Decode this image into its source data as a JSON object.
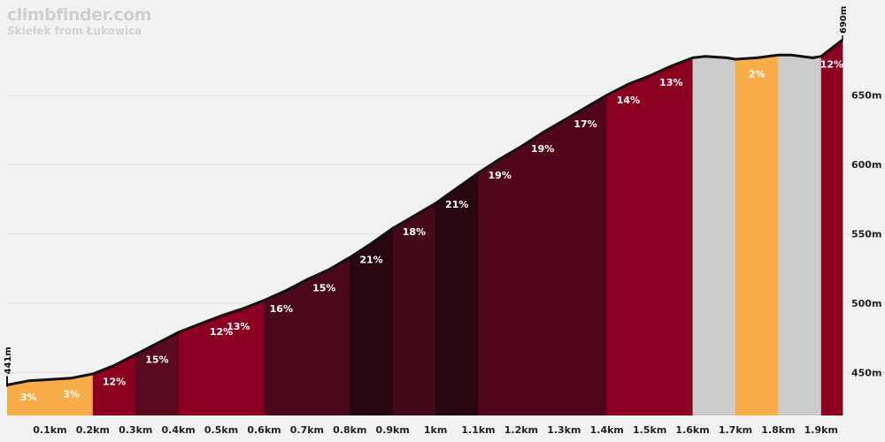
{
  "header": {
    "brand": "climbfinder.com",
    "climb_name": "Skiełek from Łukowica"
  },
  "chart_data": {
    "type": "area",
    "title": "climbfinder.com",
    "subtitle": "Skiełek from Łukowica",
    "xlabel": "",
    "ylabel": "",
    "xlim": [
      0,
      1.95
    ],
    "ylim": [
      419,
      690
    ],
    "x_ticks": [
      "0.1km",
      "0.2km",
      "0.3km",
      "0.4km",
      "0.5km",
      "0.6km",
      "0.7km",
      "0.8km",
      "0.9km",
      "1km",
      "1.1km",
      "1.2km",
      "1.3km",
      "1.4km",
      "1.5km",
      "1.6km",
      "1.7km",
      "1.8km",
      "1.9km"
    ],
    "y_ticks": [
      {
        "value": 450,
        "label": "450m"
      },
      {
        "value": 500,
        "label": "500m"
      },
      {
        "value": 550,
        "label": "550m"
      },
      {
        "value": 600,
        "label": "600m"
      },
      {
        "value": 650,
        "label": "650m"
      }
    ],
    "start_elevation_label": "441m",
    "end_elevation_label": "690m",
    "profile": [
      [
        0.0,
        441
      ],
      [
        0.05,
        444
      ],
      [
        0.1,
        445
      ],
      [
        0.15,
        446
      ],
      [
        0.2,
        449
      ],
      [
        0.25,
        455
      ],
      [
        0.3,
        463
      ],
      [
        0.35,
        471
      ],
      [
        0.4,
        479
      ],
      [
        0.45,
        485
      ],
      [
        0.5,
        491
      ],
      [
        0.55,
        496
      ],
      [
        0.6,
        502
      ],
      [
        0.65,
        509
      ],
      [
        0.7,
        517
      ],
      [
        0.75,
        524
      ],
      [
        0.8,
        533
      ],
      [
        0.85,
        543
      ],
      [
        0.9,
        554
      ],
      [
        0.95,
        563
      ],
      [
        1.0,
        572
      ],
      [
        1.05,
        583
      ],
      [
        1.1,
        594
      ],
      [
        1.15,
        604
      ],
      [
        1.2,
        613
      ],
      [
        1.25,
        623
      ],
      [
        1.3,
        632
      ],
      [
        1.35,
        641
      ],
      [
        1.4,
        650
      ],
      [
        1.45,
        658
      ],
      [
        1.5,
        664
      ],
      [
        1.55,
        671
      ],
      [
        1.6,
        677
      ],
      [
        1.63,
        678
      ],
      [
        1.68,
        677
      ],
      [
        1.7,
        676
      ],
      [
        1.75,
        677
      ],
      [
        1.8,
        679
      ],
      [
        1.83,
        679
      ],
      [
        1.88,
        677
      ],
      [
        1.9,
        678
      ],
      [
        1.95,
        690
      ]
    ],
    "segments": [
      {
        "start": 0.0,
        "end": 0.1,
        "gradient": "3%",
        "color": "#f9ad49"
      },
      {
        "start": 0.1,
        "end": 0.2,
        "gradient": "3%",
        "color": "#f9ad49"
      },
      {
        "start": 0.2,
        "end": 0.3,
        "gradient": "12%",
        "color": "#8c0122"
      },
      {
        "start": 0.3,
        "end": 0.4,
        "gradient": "15%",
        "color": "#5a0a1e"
      },
      {
        "start": 0.4,
        "end": 0.6,
        "gradient": "12%",
        "color": "#8c0122"
      },
      {
        "start": 0.6,
        "end": 0.6,
        "gradient": "13%",
        "color": "#8c0122",
        "label_x": 0.54
      },
      {
        "start": 0.6,
        "end": 0.8,
        "gradient": "16%",
        "color": "#4a0a1c",
        "label_x": 0.64
      },
      {
        "start": 0.6,
        "end": 0.8,
        "gradient": "15%",
        "color": "#4a0a1c",
        "label_x": 0.74
      },
      {
        "start": 0.8,
        "end": 0.9,
        "gradient": "21%",
        "color": "#28060f"
      },
      {
        "start": 0.9,
        "end": 1.0,
        "gradient": "18%",
        "color": "#440a19"
      },
      {
        "start": 1.0,
        "end": 1.1,
        "gradient": "21%",
        "color": "#28060f"
      },
      {
        "start": 1.1,
        "end": 1.4,
        "gradient": "19%",
        "color": "#52061c",
        "label_x": 1.15
      },
      {
        "start": 1.1,
        "end": 1.4,
        "gradient": "19%",
        "color": "#52061c",
        "label_x": 1.25
      },
      {
        "start": 1.1,
        "end": 1.4,
        "gradient": "17%",
        "color": "#52061c",
        "label_x": 1.35
      },
      {
        "start": 1.4,
        "end": 1.6,
        "gradient": "14%",
        "color": "#8c0122",
        "label_x": 1.45
      },
      {
        "start": 1.4,
        "end": 1.6,
        "gradient": "13%",
        "color": "#8c0122",
        "label_x": 1.55
      },
      {
        "start": 1.6,
        "end": 1.7,
        "gradient": "",
        "color": "#cccccc"
      },
      {
        "start": 1.7,
        "end": 1.8,
        "gradient": "2%",
        "color": "#f9ad49"
      },
      {
        "start": 1.8,
        "end": 1.9,
        "gradient": "",
        "color": "#cccccc"
      },
      {
        "start": 1.9,
        "end": 1.95,
        "gradient": "12%",
        "color": "#8c0122"
      }
    ],
    "grid": "horizontal",
    "legend": "none"
  }
}
